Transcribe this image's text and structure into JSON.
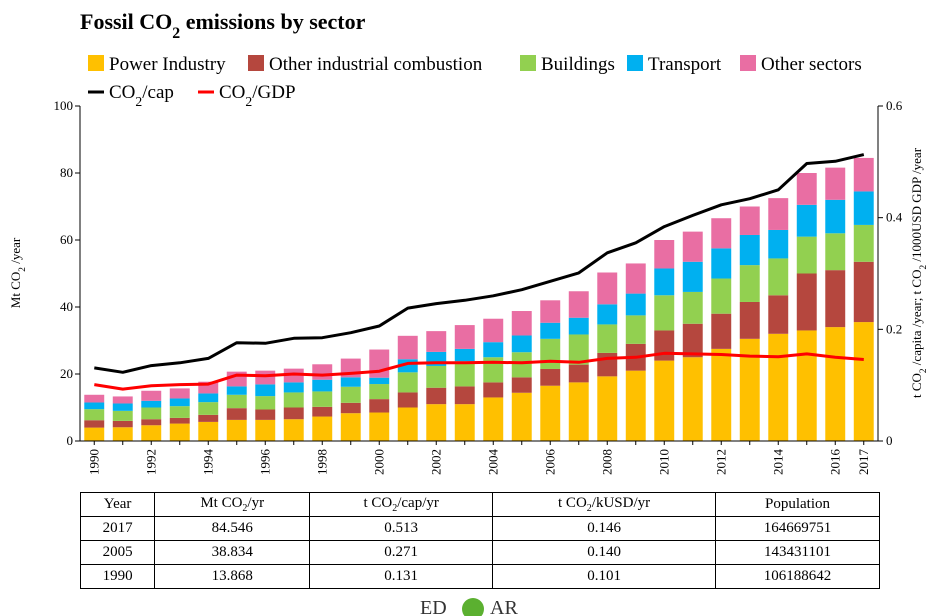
{
  "chart_data": {
    "type": "bar",
    "title_main": "Fossil CO",
    "title_sub": "2",
    "title_rest": " emissions by sector",
    "ylabel_main": "Mt CO",
    "ylabel_sub": "2",
    "ylabel_rest": " /year",
    "y2label_a": "t CO",
    "y2label_a_sub": "2",
    "y2label_b": " /capita /year; t CO",
    "y2label_b_sub": "2",
    "y2label_c": " /1000USD GDP /year",
    "ylim": [
      0,
      100
    ],
    "y2lim": [
      0,
      0.6
    ],
    "yticks": [
      0,
      20,
      40,
      60,
      80,
      100
    ],
    "y2ticks": [
      "0",
      "0.2",
      "0.4",
      "0.6"
    ],
    "y2tick_values": [
      0,
      0.2,
      0.4,
      0.6
    ],
    "x": [
      1990,
      1991,
      1992,
      1993,
      1994,
      1995,
      1996,
      1997,
      1998,
      1999,
      2000,
      2001,
      2002,
      2003,
      2004,
      2005,
      2006,
      2007,
      2008,
      2009,
      2010,
      2011,
      2012,
      2013,
      2014,
      2015,
      2016,
      2017
    ],
    "xtick_labels": [
      "1990",
      "1992",
      "1994",
      "1996",
      "1998",
      "2000",
      "2002",
      "2004",
      "2006",
      "2008",
      "2010",
      "2012",
      "2014",
      "2016",
      "2017"
    ],
    "xtick_years": [
      1990,
      1992,
      1994,
      1996,
      1998,
      2000,
      2002,
      2004,
      2006,
      2008,
      2010,
      2012,
      2014,
      2016,
      2017
    ],
    "series": [
      {
        "name": "Power Industry",
        "color": "#FFC000",
        "values": [
          4.0,
          4.1,
          4.7,
          5.2,
          5.7,
          6.3,
          6.3,
          6.5,
          7.3,
          8.3,
          8.5,
          10.0,
          11.0,
          11.0,
          13.0,
          14.4,
          16.5,
          17.5,
          19.3,
          21.0,
          24.0,
          25.0,
          27.5,
          30.5,
          32.0,
          33.0,
          34.0,
          35.5
        ]
      },
      {
        "name": "Other industrial combustion",
        "color": "#B5473E",
        "values": [
          2.2,
          1.9,
          1.8,
          1.7,
          2.1,
          3.5,
          3.1,
          3.5,
          2.9,
          3.1,
          4.0,
          4.5,
          4.9,
          5.3,
          4.5,
          4.6,
          5.0,
          5.3,
          7.0,
          8.0,
          9.0,
          10.0,
          10.5,
          11.0,
          11.5,
          17.0,
          17.0,
          18.0
        ]
      },
      {
        "name": "Buildings",
        "color": "#92D050",
        "values": [
          3.3,
          3.0,
          3.5,
          3.5,
          3.8,
          4.0,
          4.0,
          4.5,
          4.6,
          4.8,
          4.5,
          6.0,
          6.5,
          7.5,
          7.5,
          7.5,
          9.0,
          9.0,
          8.5,
          8.5,
          10.5,
          9.5,
          10.5,
          11.0,
          11.0,
          11.0,
          11.0,
          11.0
        ]
      },
      {
        "name": "Transport",
        "color": "#00B0F0",
        "values": [
          2.0,
          2.2,
          2.0,
          2.3,
          2.6,
          2.5,
          3.5,
          3.0,
          3.5,
          2.8,
          1.9,
          3.9,
          4.2,
          3.7,
          4.5,
          5.0,
          4.8,
          5.0,
          6.0,
          6.5,
          8.0,
          9.0,
          9.0,
          9.0,
          8.5,
          9.5,
          10.0,
          10.0
        ]
      },
      {
        "name": "Other sectors",
        "color": "#E96EA3",
        "values": [
          2.3,
          2.1,
          3.0,
          3.0,
          3.5,
          4.4,
          4.1,
          4.1,
          4.6,
          5.6,
          8.4,
          7.0,
          6.2,
          7.1,
          7.0,
          7.3,
          6.7,
          7.9,
          9.5,
          9.0,
          8.5,
          9.0,
          9.0,
          8.5,
          9.5,
          9.5,
          9.6,
          10.0
        ]
      }
    ],
    "lines": [
      {
        "name": "CO2/cap",
        "color": "#000000",
        "axis": "right",
        "values": [
          0.131,
          0.123,
          0.135,
          0.14,
          0.148,
          0.176,
          0.175,
          0.184,
          0.185,
          0.194,
          0.206,
          0.238,
          0.246,
          0.252,
          0.26,
          0.271,
          0.286,
          0.301,
          0.337,
          0.355,
          0.384,
          0.404,
          0.423,
          0.434,
          0.45,
          0.497,
          0.501,
          0.513
        ]
      },
      {
        "name": "CO2/GDP",
        "color": "#FF0000",
        "axis": "right",
        "values": [
          0.101,
          0.093,
          0.099,
          0.101,
          0.102,
          0.118,
          0.117,
          0.12,
          0.118,
          0.121,
          0.125,
          0.139,
          0.14,
          0.14,
          0.141,
          0.14,
          0.143,
          0.141,
          0.148,
          0.15,
          0.157,
          0.156,
          0.155,
          0.152,
          0.151,
          0.156,
          0.15,
          0.146
        ]
      }
    ],
    "legend_row2": [
      {
        "main": "CO",
        "sub": "2",
        "rest": "/cap",
        "color": "#000000"
      },
      {
        "main": "CO",
        "sub": "2",
        "rest": "/GDP",
        "color": "#FF0000"
      }
    ]
  },
  "table": {
    "headers": [
      {
        "main": "Year",
        "sub": "",
        "rest": ""
      },
      {
        "main": "Mt CO",
        "sub": "2",
        "rest": "/yr"
      },
      {
        "main": "t CO",
        "sub": "2",
        "rest": "/cap/yr"
      },
      {
        "main": "t CO",
        "sub": "2",
        "rest": "/kUSD/yr"
      },
      {
        "main": "Population",
        "sub": "",
        "rest": ""
      }
    ],
    "rows": [
      [
        "2017",
        "84.546",
        "0.513",
        "0.146",
        "164669751"
      ],
      [
        "2005",
        "38.834",
        "0.271",
        "0.140",
        "143431101"
      ],
      [
        "1990",
        "13.868",
        "0.131",
        "0.101",
        "106188642"
      ]
    ]
  },
  "logo": {
    "left": "ED",
    "right": "AR",
    "color": "#5BB030"
  }
}
